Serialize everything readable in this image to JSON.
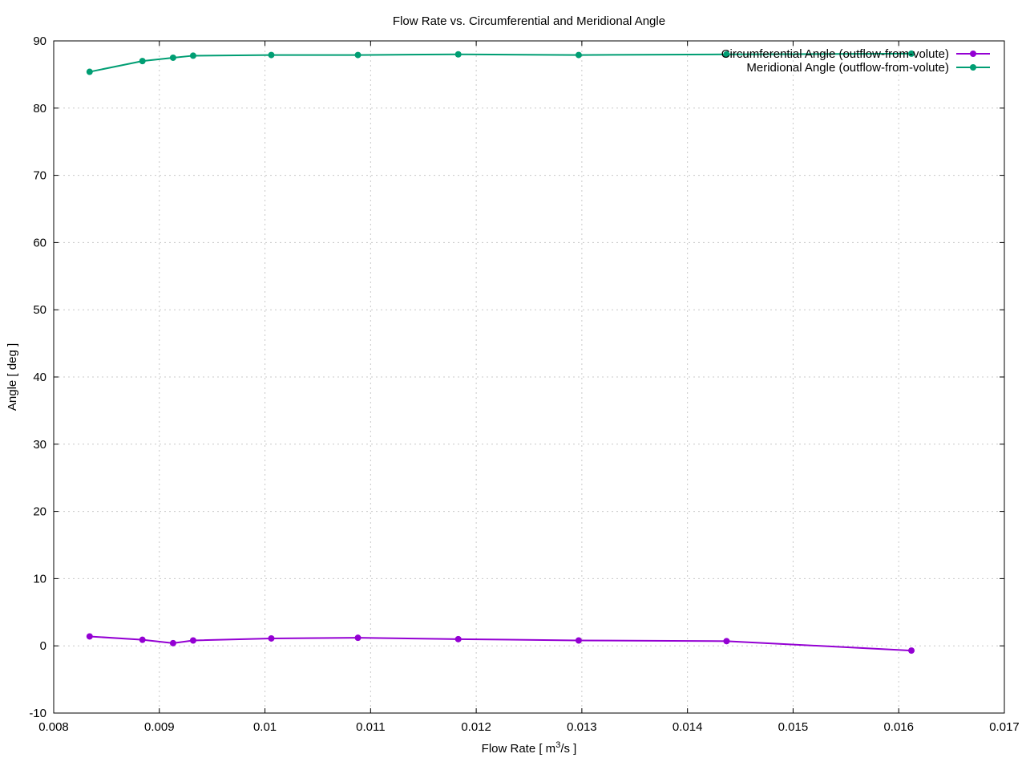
{
  "chart_data": {
    "type": "line",
    "title": "Flow Rate vs. Circumferential and Meridional Angle",
    "xlabel": "Flow Rate [ m",
    "xlabel_sup": "3",
    "xlabel_tail": "/s ]",
    "ylabel": "Angle [ deg ]",
    "xlim": [
      0.008,
      0.017
    ],
    "ylim": [
      -10,
      90
    ],
    "x_ticks": [
      0.008,
      0.009,
      0.01,
      0.011,
      0.012,
      0.013,
      0.014,
      0.015,
      0.016,
      0.017
    ],
    "x_tick_labels": [
      "0.008",
      "0.009",
      "0.01",
      "0.011",
      "0.012",
      "0.013",
      "0.014",
      "0.015",
      "0.016",
      "0.017"
    ],
    "y_ticks": [
      -10,
      0,
      10,
      20,
      30,
      40,
      50,
      60,
      70,
      80,
      90
    ],
    "y_tick_labels": [
      "-10",
      "0",
      "10",
      "20",
      "30",
      "40",
      "50",
      "60",
      "70",
      "80",
      "90"
    ],
    "grid": true,
    "legend_position": "top-right",
    "series": [
      {
        "name": "Circumferential Angle (outflow-from-volute)",
        "color": "#9400d3",
        "x": [
          0.00834,
          0.00884,
          0.00913,
          0.00932,
          0.01006,
          0.01088,
          0.01183,
          0.01297,
          0.01437,
          0.01612
        ],
        "y": [
          1.4,
          0.9,
          0.4,
          0.8,
          1.1,
          1.2,
          1.0,
          0.8,
          0.7,
          -0.7
        ]
      },
      {
        "name": "Meridional Angle (outflow-from-volute)",
        "color": "#009e73",
        "x": [
          0.00834,
          0.00884,
          0.00913,
          0.00932,
          0.01006,
          0.01088,
          0.01183,
          0.01297,
          0.01437,
          0.01612
        ],
        "y": [
          85.4,
          87.0,
          87.5,
          87.8,
          87.9,
          87.9,
          88.0,
          87.9,
          88.0,
          88.1
        ]
      }
    ]
  }
}
